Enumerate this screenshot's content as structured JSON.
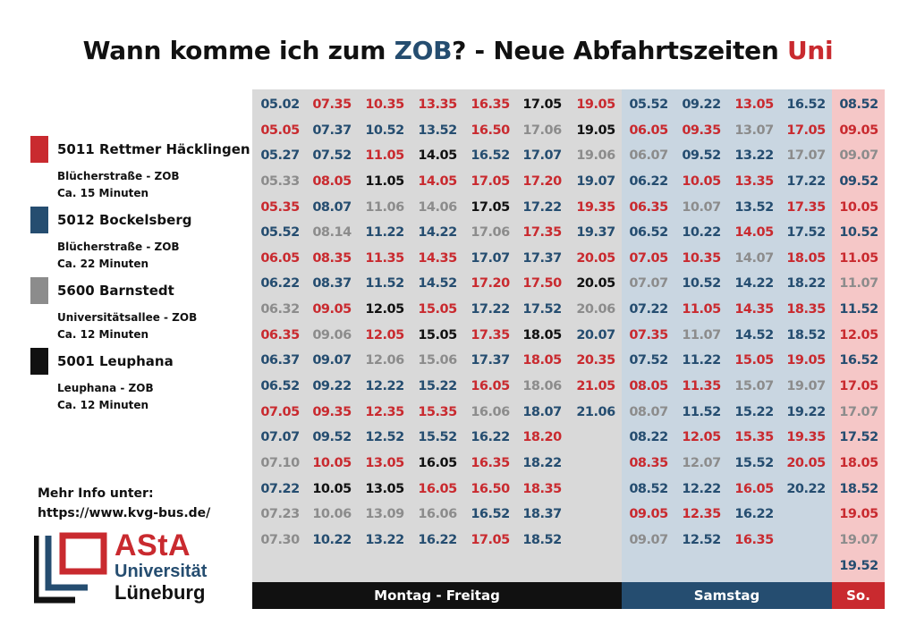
{
  "colors": {
    "red": "#c92a2f",
    "blue": "#254d70",
    "gray": "#8c8c8c",
    "black": "#111111"
  },
  "title": {
    "part1": "Wann komme ich zum ",
    "zob": "ZOB",
    "part2": "? - Neue Abfahrtszeiten ",
    "uni": "Uni"
  },
  "legend": [
    {
      "color": "#c92a2f",
      "line": "5011 Rettmer Häcklingen",
      "route": "Blücherstraße - ZOB",
      "duration": "Ca. 15 Minuten"
    },
    {
      "color": "#254d70",
      "line": "5012 Bockelsberg",
      "route": "Blücherstraße - ZOB",
      "duration": "Ca. 22 Minuten"
    },
    {
      "color": "#8c8c8c",
      "line": "5600 Barnstedt",
      "route": "Universitätsallee - ZOB",
      "duration": "Ca. 12 Minuten"
    },
    {
      "color": "#111111",
      "line": "5001 Leuphana",
      "route": "Leuphana - ZOB",
      "duration": "Ca. 12 Minuten"
    }
  ],
  "info": {
    "line1": "Mehr Info unter:",
    "line2": "https://www.kvg-bus.de/"
  },
  "logo": {
    "asta": "AStA",
    "uni": "Universität",
    "city": "Lüneburg"
  },
  "footer": {
    "weekday": "Montag - Freitag",
    "saturday": "Samstag",
    "sunday": "So."
  },
  "columns": [
    {
      "panel": "wk",
      "times": [
        [
          "05.02",
          "b"
        ],
        [
          "05.05",
          "r"
        ],
        [
          "05.27",
          "b"
        ],
        [
          "05.33",
          "g"
        ],
        [
          "05.35",
          "r"
        ],
        [
          "05.52",
          "b"
        ],
        [
          "06.05",
          "r"
        ],
        [
          "06.22",
          "b"
        ],
        [
          "06.32",
          "g"
        ],
        [
          "06.35",
          "r"
        ],
        [
          "06.37",
          "b"
        ],
        [
          "06.52",
          "b"
        ],
        [
          "07.05",
          "r"
        ],
        [
          "07.07",
          "b"
        ],
        [
          "07.10",
          "g"
        ],
        [
          "07.22",
          "b"
        ],
        [
          "07.23",
          "g"
        ],
        [
          "07.30",
          "g"
        ]
      ]
    },
    {
      "panel": "wk",
      "times": [
        [
          "07.35",
          "r"
        ],
        [
          "07.37",
          "b"
        ],
        [
          "07.52",
          "b"
        ],
        [
          "08.05",
          "r"
        ],
        [
          "08.07",
          "b"
        ],
        [
          "08.14",
          "g"
        ],
        [
          "08.35",
          "r"
        ],
        [
          "08.37",
          "b"
        ],
        [
          "09.05",
          "r"
        ],
        [
          "09.06",
          "g"
        ],
        [
          "09.07",
          "b"
        ],
        [
          "09.22",
          "b"
        ],
        [
          "09.35",
          "r"
        ],
        [
          "09.52",
          "b"
        ],
        [
          "10.05",
          "r"
        ],
        [
          "10.05",
          "k"
        ],
        [
          "10.06",
          "g"
        ],
        [
          "10.22",
          "b"
        ]
      ]
    },
    {
      "panel": "wk",
      "times": [
        [
          "10.35",
          "r"
        ],
        [
          "10.52",
          "b"
        ],
        [
          "11.05",
          "r"
        ],
        [
          "11.05",
          "k"
        ],
        [
          "11.06",
          "g"
        ],
        [
          "11.22",
          "b"
        ],
        [
          "11.35",
          "r"
        ],
        [
          "11.52",
          "b"
        ],
        [
          "12.05",
          "k"
        ],
        [
          "12.05",
          "r"
        ],
        [
          "12.06",
          "g"
        ],
        [
          "12.22",
          "b"
        ],
        [
          "12.35",
          "r"
        ],
        [
          "12.52",
          "b"
        ],
        [
          "13.05",
          "r"
        ],
        [
          "13.05",
          "k"
        ],
        [
          "13.09",
          "g"
        ],
        [
          "13.22",
          "b"
        ]
      ]
    },
    {
      "panel": "wk",
      "times": [
        [
          "13.35",
          "r"
        ],
        [
          "13.52",
          "b"
        ],
        [
          "14.05",
          "k"
        ],
        [
          "14.05",
          "r"
        ],
        [
          "14.06",
          "g"
        ],
        [
          "14.22",
          "b"
        ],
        [
          "14.35",
          "r"
        ],
        [
          "14.52",
          "b"
        ],
        [
          "15.05",
          "r"
        ],
        [
          "15.05",
          "k"
        ],
        [
          "15.06",
          "g"
        ],
        [
          "15.22",
          "b"
        ],
        [
          "15.35",
          "r"
        ],
        [
          "15.52",
          "b"
        ],
        [
          "16.05",
          "k"
        ],
        [
          "16.05",
          "r"
        ],
        [
          "16.06",
          "g"
        ],
        [
          "16.22",
          "b"
        ]
      ]
    },
    {
      "panel": "wk",
      "times": [
        [
          "16.35",
          "r"
        ],
        [
          "16.50",
          "r"
        ],
        [
          "16.52",
          "b"
        ],
        [
          "17.05",
          "r"
        ],
        [
          "17.05",
          "k"
        ],
        [
          "17.06",
          "g"
        ],
        [
          "17.07",
          "b"
        ],
        [
          "17.20",
          "r"
        ],
        [
          "17.22",
          "b"
        ],
        [
          "17.35",
          "r"
        ],
        [
          "17.37",
          "b"
        ],
        [
          "16.05",
          "r"
        ],
        [
          "16.06",
          "g"
        ],
        [
          "16.22",
          "b"
        ],
        [
          "16.35",
          "r"
        ],
        [
          "16.50",
          "r"
        ],
        [
          "16.52",
          "b"
        ],
        [
          "17.05",
          "r"
        ]
      ]
    },
    {
      "panel": "wk",
      "times": [
        [
          "17.05",
          "k"
        ],
        [
          "17.06",
          "g"
        ],
        [
          "17.07",
          "b"
        ],
        [
          "17.20",
          "r"
        ],
        [
          "17.22",
          "b"
        ],
        [
          "17.35",
          "r"
        ],
        [
          "17.37",
          "b"
        ],
        [
          "17.50",
          "r"
        ],
        [
          "17.52",
          "b"
        ],
        [
          "18.05",
          "k"
        ],
        [
          "18.05",
          "r"
        ],
        [
          "18.06",
          "g"
        ],
        [
          "18.07",
          "b"
        ],
        [
          "18.20",
          "r"
        ],
        [
          "18.22",
          "b"
        ],
        [
          "18.35",
          "r"
        ],
        [
          "18.37",
          "b"
        ],
        [
          "18.52",
          "b"
        ]
      ]
    },
    {
      "panel": "wk",
      "times": [
        [
          "19.05",
          "r"
        ],
        [
          "19.05",
          "k"
        ],
        [
          "19.06",
          "g"
        ],
        [
          "19.07",
          "b"
        ],
        [
          "19.35",
          "r"
        ],
        [
          "19.37",
          "b"
        ],
        [
          "20.05",
          "r"
        ],
        [
          "20.05",
          "k"
        ],
        [
          "20.06",
          "g"
        ],
        [
          "20.07",
          "b"
        ],
        [
          "20.35",
          "r"
        ],
        [
          "21.05",
          "r"
        ],
        [
          "21.06",
          "b"
        ]
      ]
    },
    {
      "panel": "sa",
      "times": [
        [
          "05.52",
          "b"
        ],
        [
          "06.05",
          "r"
        ],
        [
          "06.07",
          "g"
        ],
        [
          "06.22",
          "b"
        ],
        [
          "06.35",
          "r"
        ],
        [
          "06.52",
          "b"
        ],
        [
          "07.05",
          "r"
        ],
        [
          "07.07",
          "g"
        ],
        [
          "07.22",
          "b"
        ],
        [
          "07.35",
          "r"
        ],
        [
          "07.52",
          "b"
        ],
        [
          "08.05",
          "r"
        ],
        [
          "08.07",
          "g"
        ],
        [
          "08.22",
          "b"
        ],
        [
          "08.35",
          "r"
        ],
        [
          "08.52",
          "b"
        ],
        [
          "09.05",
          "r"
        ],
        [
          "09.07",
          "g"
        ]
      ]
    },
    {
      "panel": "sa",
      "times": [
        [
          "09.22",
          "b"
        ],
        [
          "09.35",
          "r"
        ],
        [
          "09.52",
          "b"
        ],
        [
          "10.05",
          "r"
        ],
        [
          "10.07",
          "g"
        ],
        [
          "10.22",
          "b"
        ],
        [
          "10.35",
          "r"
        ],
        [
          "10.52",
          "b"
        ],
        [
          "11.05",
          "r"
        ],
        [
          "11.07",
          "g"
        ],
        [
          "11.22",
          "b"
        ],
        [
          "11.35",
          "r"
        ],
        [
          "11.52",
          "b"
        ],
        [
          "12.05",
          "r"
        ],
        [
          "12.07",
          "g"
        ],
        [
          "12.22",
          "b"
        ],
        [
          "12.35",
          "r"
        ],
        [
          "12.52",
          "b"
        ]
      ]
    },
    {
      "panel": "sa",
      "times": [
        [
          "13.05",
          "r"
        ],
        [
          "13.07",
          "g"
        ],
        [
          "13.22",
          "b"
        ],
        [
          "13.35",
          "r"
        ],
        [
          "13.52",
          "b"
        ],
        [
          "14.05",
          "r"
        ],
        [
          "14.07",
          "g"
        ],
        [
          "14.22",
          "b"
        ],
        [
          "14.35",
          "r"
        ],
        [
          "14.52",
          "b"
        ],
        [
          "15.05",
          "r"
        ],
        [
          "15.07",
          "g"
        ],
        [
          "15.22",
          "b"
        ],
        [
          "15.35",
          "r"
        ],
        [
          "15.52",
          "b"
        ],
        [
          "16.05",
          "r"
        ],
        [
          "16.22",
          "b"
        ],
        [
          "16.35",
          "r"
        ]
      ]
    },
    {
      "panel": "sa",
      "times": [
        [
          "16.52",
          "b"
        ],
        [
          "17.05",
          "r"
        ],
        [
          "17.07",
          "g"
        ],
        [
          "17.22",
          "b"
        ],
        [
          "17.35",
          "r"
        ],
        [
          "17.52",
          "b"
        ],
        [
          "18.05",
          "r"
        ],
        [
          "18.22",
          "b"
        ],
        [
          "18.35",
          "r"
        ],
        [
          "18.52",
          "b"
        ],
        [
          "19.05",
          "r"
        ],
        [
          "19.07",
          "g"
        ],
        [
          "19.22",
          "b"
        ],
        [
          "19.35",
          "r"
        ],
        [
          "20.05",
          "r"
        ],
        [
          "20.22",
          "b"
        ]
      ]
    },
    {
      "panel": "so",
      "times": [
        [
          "08.52",
          "b"
        ],
        [
          "09.05",
          "r"
        ],
        [
          "09.07",
          "g"
        ],
        [
          "09.52",
          "b"
        ],
        [
          "10.05",
          "r"
        ],
        [
          "10.52",
          "b"
        ],
        [
          "11.05",
          "r"
        ],
        [
          "11.07",
          "g"
        ],
        [
          "11.52",
          "b"
        ],
        [
          "12.05",
          "r"
        ],
        [
          "16.52",
          "b"
        ],
        [
          "17.05",
          "r"
        ],
        [
          "17.07",
          "g"
        ],
        [
          "17.52",
          "b"
        ],
        [
          "18.05",
          "r"
        ],
        [
          "18.52",
          "b"
        ],
        [
          "19.05",
          "r"
        ],
        [
          "19.07",
          "g"
        ],
        [
          "19.52",
          "b"
        ]
      ]
    }
  ]
}
